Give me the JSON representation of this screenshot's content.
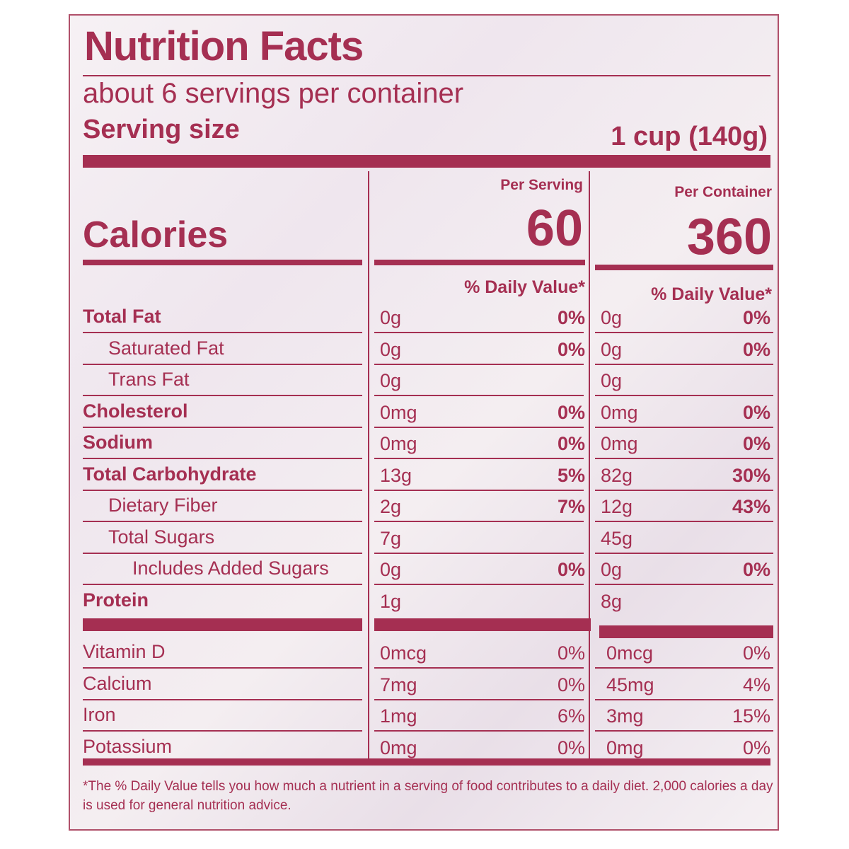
{
  "title": "Nutrition Facts",
  "servings": "about 6 servings per container",
  "serving_size": {
    "label": "Serving size",
    "value": "1 cup (140g)"
  },
  "columns": {
    "per_serving": "Per Serving",
    "per_container": "Per Container",
    "dv": "% Daily Value*"
  },
  "calories": {
    "label": "Calories",
    "per_serving": "60",
    "per_container": "360"
  },
  "rows": [
    {
      "name": "Total Fat",
      "bold": true,
      "indent": 0,
      "s_amt": "0g",
      "s_dv": "0%",
      "c_amt": "0g",
      "c_dv": "0%"
    },
    {
      "name": "Saturated Fat",
      "bold": false,
      "indent": 1,
      "s_amt": "0g",
      "s_dv": "0%",
      "c_amt": "0g",
      "c_dv": "0%"
    },
    {
      "name": "Trans Fat",
      "bold": false,
      "indent": 1,
      "s_amt": "0g",
      "s_dv": "",
      "c_amt": "0g",
      "c_dv": ""
    },
    {
      "name": "Cholesterol",
      "bold": true,
      "indent": 0,
      "s_amt": "0mg",
      "s_dv": "0%",
      "c_amt": "0mg",
      "c_dv": "0%"
    },
    {
      "name": "Sodium",
      "bold": true,
      "indent": 0,
      "s_amt": "0mg",
      "s_dv": "0%",
      "c_amt": "0mg",
      "c_dv": "0%"
    },
    {
      "name": "Total Carbohydrate",
      "bold": true,
      "indent": 0,
      "s_amt": "13g",
      "s_dv": "5%",
      "c_amt": "82g",
      "c_dv": "30%"
    },
    {
      "name": "Dietary Fiber",
      "bold": false,
      "indent": 1,
      "s_amt": "2g",
      "s_dv": "7%",
      "c_amt": "12g",
      "c_dv": "43%"
    },
    {
      "name": "Total Sugars",
      "bold": false,
      "indent": 1,
      "s_amt": "7g",
      "s_dv": "",
      "c_amt": "45g",
      "c_dv": ""
    },
    {
      "name": "Includes Added Sugars",
      "bold": false,
      "indent": 2,
      "s_amt": "0g",
      "s_dv": "0%",
      "c_amt": "0g",
      "c_dv": "0%"
    },
    {
      "name": "Protein",
      "bold": true,
      "indent": 0,
      "s_amt": "1g",
      "s_dv": "",
      "c_amt": "8g",
      "c_dv": ""
    }
  ],
  "vitamins": [
    {
      "name": "Vitamin D",
      "s_amt": "0mcg",
      "s_dv": "0%",
      "c_amt": "0mcg",
      "c_dv": "0%"
    },
    {
      "name": "Calcium",
      "s_amt": "7mg",
      "s_dv": "0%",
      "c_amt": "45mg",
      "c_dv": "4%"
    },
    {
      "name": "Iron",
      "s_amt": "1mg",
      "s_dv": "6%",
      "c_amt": "3mg",
      "c_dv": "15%"
    },
    {
      "name": "Potassium",
      "s_amt": "0mg",
      "s_dv": "0%",
      "c_amt": "0mg",
      "c_dv": "0%"
    }
  ],
  "footnote": "*The % Daily Value tells you how much a nutrient in a serving of food contributes to a daily diet. 2,000 calories a day is used for general nutrition advice.",
  "colors": {
    "ink": "#a52f52",
    "background": "#f3eef2"
  }
}
